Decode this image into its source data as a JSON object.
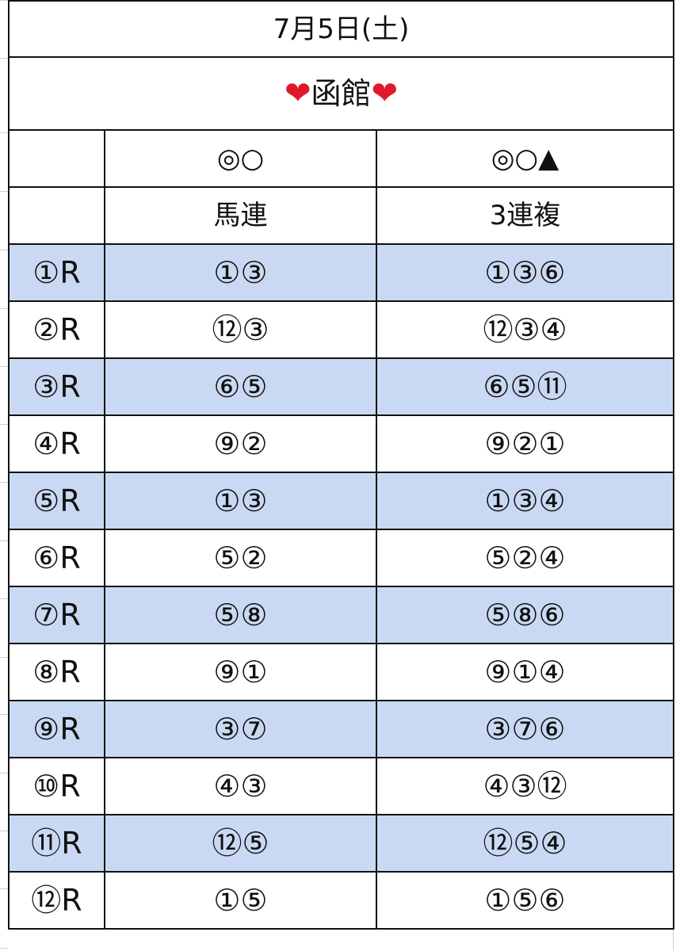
{
  "header": {
    "date": "7月5日(土)",
    "venue": "函館",
    "venue_icon": "heart-icon"
  },
  "columns": {
    "pair_symbols": "◎○",
    "trio_symbols": "◎○▲",
    "pair_bet": "馬連",
    "trio_bet": "3連複"
  },
  "races": [
    {
      "label": "①R",
      "pair": "①③",
      "trio": "①③⑥"
    },
    {
      "label": "②R",
      "pair": "⑫③",
      "trio": "⑫③④"
    },
    {
      "label": "③R",
      "pair": "⑥⑤",
      "trio": "⑥⑤⑪"
    },
    {
      "label": "④R",
      "pair": "⑨②",
      "trio": "⑨②①"
    },
    {
      "label": "⑤R",
      "pair": "①③",
      "trio": "①③④"
    },
    {
      "label": "⑥R",
      "pair": "⑤②",
      "trio": "⑤②④"
    },
    {
      "label": "⑦R",
      "pair": "⑤⑧",
      "trio": "⑤⑧⑥"
    },
    {
      "label": "⑧R",
      "pair": "⑨①",
      "trio": "⑨①④"
    },
    {
      "label": "⑨R",
      "pair": "③⑦",
      "trio": "③⑦⑥"
    },
    {
      "label": "⑩R",
      "pair": "④③",
      "trio": "④③⑫"
    },
    {
      "label": "⑪R",
      "pair": "⑫⑤",
      "trio": "⑫⑤④"
    },
    {
      "label": "⑫R",
      "pair": "①⑤",
      "trio": "①⑤⑥"
    }
  ],
  "colors": {
    "shaded_row": "#cad9f3",
    "heart": "#e0192a"
  }
}
